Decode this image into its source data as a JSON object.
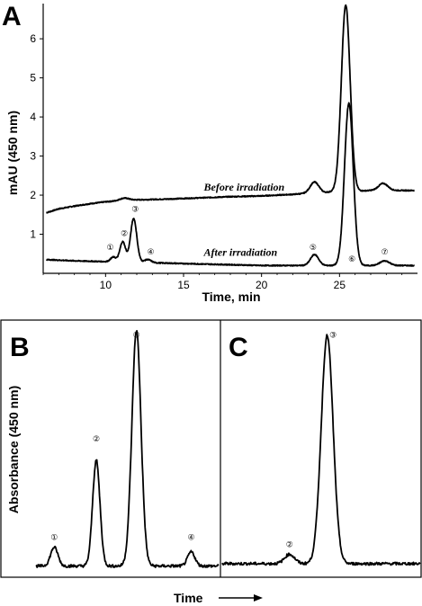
{
  "chart_data": [
    {
      "panel": "A",
      "type": "line",
      "xlabel": "Time, min",
      "ylabel": "mAU (450 nm)",
      "xlim": [
        6,
        30
      ],
      "ylim": [
        0,
        6.9
      ],
      "xticks": [
        10,
        15,
        20,
        25
      ],
      "yticks": [
        1,
        2,
        3,
        4,
        5,
        6
      ],
      "series": [
        {
          "name": "Before irradiation",
          "baseline_points": [
            [
              6.2,
              1.55
            ],
            [
              7,
              1.65
            ],
            [
              8,
              1.72
            ],
            [
              9,
              1.78
            ],
            [
              10,
              1.83
            ],
            [
              11,
              1.86
            ],
            [
              12,
              1.88
            ],
            [
              14,
              1.9
            ],
            [
              16,
              1.93
            ],
            [
              18,
              1.96
            ],
            [
              20,
              1.98
            ],
            [
              22,
              2.02
            ],
            [
              23,
              2.05
            ],
            [
              24,
              2.06
            ],
            [
              25,
              2.12
            ],
            [
              26,
              2.1
            ],
            [
              27,
              2.12
            ],
            [
              28,
              2.12
            ],
            [
              29,
              2.12
            ],
            [
              29.8,
              2.12
            ]
          ],
          "peaks": [
            {
              "x": 11.2,
              "height": 0.06,
              "width": 0.3
            },
            {
              "x": 23.4,
              "height": 0.28,
              "width": 0.28
            },
            {
              "x": 25.4,
              "height": 4.75,
              "width": 0.28
            },
            {
              "x": 27.8,
              "height": 0.18,
              "width": 0.3
            }
          ]
        },
        {
          "name": "After irradiation",
          "baseline_points": [
            [
              6.2,
              0.35
            ],
            [
              8,
              0.32
            ],
            [
              10,
              0.3
            ],
            [
              12,
              0.28
            ],
            [
              14,
              0.26
            ],
            [
              16,
              0.24
            ],
            [
              18,
              0.22
            ],
            [
              20,
              0.2
            ],
            [
              22,
              0.2
            ],
            [
              24,
              0.2
            ],
            [
              26,
              0.2
            ],
            [
              28,
              0.2
            ],
            [
              29.8,
              0.2
            ]
          ],
          "peaks": [
            {
              "x": 10.5,
              "height": 0.12,
              "width": 0.18
            },
            {
              "x": 11.1,
              "height": 0.52,
              "width": 0.18
            },
            {
              "x": 11.8,
              "height": 1.12,
              "width": 0.2
            },
            {
              "x": 12.7,
              "height": 0.08,
              "width": 0.22
            },
            {
              "x": 23.4,
              "height": 0.28,
              "width": 0.26
            },
            {
              "x": 25.6,
              "height": 4.15,
              "width": 0.28
            },
            {
              "x": 27.9,
              "height": 0.12,
              "width": 0.3
            }
          ]
        }
      ],
      "annotations": [
        {
          "text": "Before irradiation",
          "x": 16.3,
          "y": 2.12
        },
        {
          "text": "After irradiation",
          "x": 16.3,
          "y": 0.45
        },
        {
          "text": "①",
          "x": 10.3,
          "y": 0.6
        },
        {
          "text": "②",
          "x": 11.2,
          "y": 0.95
        },
        {
          "text": "③",
          "x": 11.9,
          "y": 1.57
        },
        {
          "text": "④",
          "x": 12.9,
          "y": 0.48
        },
        {
          "text": "⑤",
          "x": 23.3,
          "y": 0.6
        },
        {
          "text": "⑥",
          "x": 25.8,
          "y": 0.3
        },
        {
          "text": "⑦",
          "x": 27.9,
          "y": 0.48
        }
      ]
    },
    {
      "panel": "B",
      "type": "line",
      "xlabel": "",
      "ylabel": "Absorbance (450 nm)",
      "xlim": [
        0,
        1
      ],
      "ylim": [
        0,
        1.07
      ],
      "baseline": 0.04,
      "peaks": [
        {
          "x": 0.1,
          "height": 0.08,
          "width": 0.02
        },
        {
          "x": 0.33,
          "height": 0.45,
          "width": 0.02
        },
        {
          "x": 0.55,
          "height": 1.0,
          "width": 0.025
        },
        {
          "x": 0.85,
          "height": 0.06,
          "width": 0.02
        }
      ],
      "annotations": [
        {
          "text": "①",
          "x": 0.1,
          "y": 0.15
        },
        {
          "text": "②",
          "x": 0.33,
          "y": 0.57
        },
        {
          "text": "③",
          "x": 0.55,
          "y": 1.01
        },
        {
          "text": "④",
          "x": 0.85,
          "y": 0.15
        }
      ]
    },
    {
      "panel": "C",
      "type": "line",
      "xlabel": "",
      "ylabel": "",
      "xlim": [
        0,
        1
      ],
      "ylim": [
        0,
        1.07
      ],
      "baseline": 0.05,
      "peaks": [
        {
          "x": 0.34,
          "height": 0.04,
          "width": 0.025
        },
        {
          "x": 0.53,
          "height": 0.97,
          "width": 0.03
        }
      ],
      "annotations": [
        {
          "text": "②",
          "x": 0.34,
          "y": 0.12
        },
        {
          "text": "③",
          "x": 0.56,
          "y": 1.01
        }
      ]
    }
  ],
  "shared": {
    "bottom_label": "Time",
    "panel_letters": [
      "A",
      "B",
      "C"
    ]
  }
}
